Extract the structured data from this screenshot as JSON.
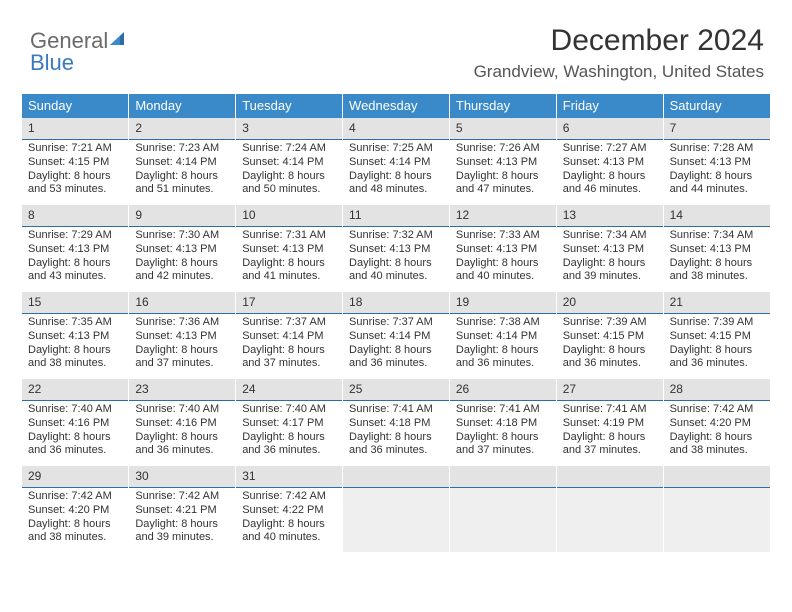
{
  "logo": {
    "text1": "General",
    "text2": "Blue"
  },
  "header": {
    "month_title": "December 2024",
    "location": "Grandview, Washington, United States"
  },
  "styling": {
    "header_bg": "#3a8ac9",
    "header_text": "#ffffff",
    "daynum_bg": "#e3e3e3",
    "daynum_border": "#2d6da6",
    "body_text": "#333333",
    "empty_bg": "#efefef",
    "title_fontsize": 30,
    "location_fontsize": 17,
    "dayhead_fontsize": 13,
    "cell_fontsize": 11
  },
  "day_names": [
    "Sunday",
    "Monday",
    "Tuesday",
    "Wednesday",
    "Thursday",
    "Friday",
    "Saturday"
  ],
  "weeks": [
    [
      {
        "n": "1",
        "sunrise": "Sunrise: 7:21 AM",
        "sunset": "Sunset: 4:15 PM",
        "daylight": "Daylight: 8 hours and 53 minutes."
      },
      {
        "n": "2",
        "sunrise": "Sunrise: 7:23 AM",
        "sunset": "Sunset: 4:14 PM",
        "daylight": "Daylight: 8 hours and 51 minutes."
      },
      {
        "n": "3",
        "sunrise": "Sunrise: 7:24 AM",
        "sunset": "Sunset: 4:14 PM",
        "daylight": "Daylight: 8 hours and 50 minutes."
      },
      {
        "n": "4",
        "sunrise": "Sunrise: 7:25 AM",
        "sunset": "Sunset: 4:14 PM",
        "daylight": "Daylight: 8 hours and 48 minutes."
      },
      {
        "n": "5",
        "sunrise": "Sunrise: 7:26 AM",
        "sunset": "Sunset: 4:13 PM",
        "daylight": "Daylight: 8 hours and 47 minutes."
      },
      {
        "n": "6",
        "sunrise": "Sunrise: 7:27 AM",
        "sunset": "Sunset: 4:13 PM",
        "daylight": "Daylight: 8 hours and 46 minutes."
      },
      {
        "n": "7",
        "sunrise": "Sunrise: 7:28 AM",
        "sunset": "Sunset: 4:13 PM",
        "daylight": "Daylight: 8 hours and 44 minutes."
      }
    ],
    [
      {
        "n": "8",
        "sunrise": "Sunrise: 7:29 AM",
        "sunset": "Sunset: 4:13 PM",
        "daylight": "Daylight: 8 hours and 43 minutes."
      },
      {
        "n": "9",
        "sunrise": "Sunrise: 7:30 AM",
        "sunset": "Sunset: 4:13 PM",
        "daylight": "Daylight: 8 hours and 42 minutes."
      },
      {
        "n": "10",
        "sunrise": "Sunrise: 7:31 AM",
        "sunset": "Sunset: 4:13 PM",
        "daylight": "Daylight: 8 hours and 41 minutes."
      },
      {
        "n": "11",
        "sunrise": "Sunrise: 7:32 AM",
        "sunset": "Sunset: 4:13 PM",
        "daylight": "Daylight: 8 hours and 40 minutes."
      },
      {
        "n": "12",
        "sunrise": "Sunrise: 7:33 AM",
        "sunset": "Sunset: 4:13 PM",
        "daylight": "Daylight: 8 hours and 40 minutes."
      },
      {
        "n": "13",
        "sunrise": "Sunrise: 7:34 AM",
        "sunset": "Sunset: 4:13 PM",
        "daylight": "Daylight: 8 hours and 39 minutes."
      },
      {
        "n": "14",
        "sunrise": "Sunrise: 7:34 AM",
        "sunset": "Sunset: 4:13 PM",
        "daylight": "Daylight: 8 hours and 38 minutes."
      }
    ],
    [
      {
        "n": "15",
        "sunrise": "Sunrise: 7:35 AM",
        "sunset": "Sunset: 4:13 PM",
        "daylight": "Daylight: 8 hours and 38 minutes."
      },
      {
        "n": "16",
        "sunrise": "Sunrise: 7:36 AM",
        "sunset": "Sunset: 4:13 PM",
        "daylight": "Daylight: 8 hours and 37 minutes."
      },
      {
        "n": "17",
        "sunrise": "Sunrise: 7:37 AM",
        "sunset": "Sunset: 4:14 PM",
        "daylight": "Daylight: 8 hours and 37 minutes."
      },
      {
        "n": "18",
        "sunrise": "Sunrise: 7:37 AM",
        "sunset": "Sunset: 4:14 PM",
        "daylight": "Daylight: 8 hours and 36 minutes."
      },
      {
        "n": "19",
        "sunrise": "Sunrise: 7:38 AM",
        "sunset": "Sunset: 4:14 PM",
        "daylight": "Daylight: 8 hours and 36 minutes."
      },
      {
        "n": "20",
        "sunrise": "Sunrise: 7:39 AM",
        "sunset": "Sunset: 4:15 PM",
        "daylight": "Daylight: 8 hours and 36 minutes."
      },
      {
        "n": "21",
        "sunrise": "Sunrise: 7:39 AM",
        "sunset": "Sunset: 4:15 PM",
        "daylight": "Daylight: 8 hours and 36 minutes."
      }
    ],
    [
      {
        "n": "22",
        "sunrise": "Sunrise: 7:40 AM",
        "sunset": "Sunset: 4:16 PM",
        "daylight": "Daylight: 8 hours and 36 minutes."
      },
      {
        "n": "23",
        "sunrise": "Sunrise: 7:40 AM",
        "sunset": "Sunset: 4:16 PM",
        "daylight": "Daylight: 8 hours and 36 minutes."
      },
      {
        "n": "24",
        "sunrise": "Sunrise: 7:40 AM",
        "sunset": "Sunset: 4:17 PM",
        "daylight": "Daylight: 8 hours and 36 minutes."
      },
      {
        "n": "25",
        "sunrise": "Sunrise: 7:41 AM",
        "sunset": "Sunset: 4:18 PM",
        "daylight": "Daylight: 8 hours and 36 minutes."
      },
      {
        "n": "26",
        "sunrise": "Sunrise: 7:41 AM",
        "sunset": "Sunset: 4:18 PM",
        "daylight": "Daylight: 8 hours and 37 minutes."
      },
      {
        "n": "27",
        "sunrise": "Sunrise: 7:41 AM",
        "sunset": "Sunset: 4:19 PM",
        "daylight": "Daylight: 8 hours and 37 minutes."
      },
      {
        "n": "28",
        "sunrise": "Sunrise: 7:42 AM",
        "sunset": "Sunset: 4:20 PM",
        "daylight": "Daylight: 8 hours and 38 minutes."
      }
    ],
    [
      {
        "n": "29",
        "sunrise": "Sunrise: 7:42 AM",
        "sunset": "Sunset: 4:20 PM",
        "daylight": "Daylight: 8 hours and 38 minutes."
      },
      {
        "n": "30",
        "sunrise": "Sunrise: 7:42 AM",
        "sunset": "Sunset: 4:21 PM",
        "daylight": "Daylight: 8 hours and 39 minutes."
      },
      {
        "n": "31",
        "sunrise": "Sunrise: 7:42 AM",
        "sunset": "Sunset: 4:22 PM",
        "daylight": "Daylight: 8 hours and 40 minutes."
      },
      null,
      null,
      null,
      null
    ]
  ]
}
